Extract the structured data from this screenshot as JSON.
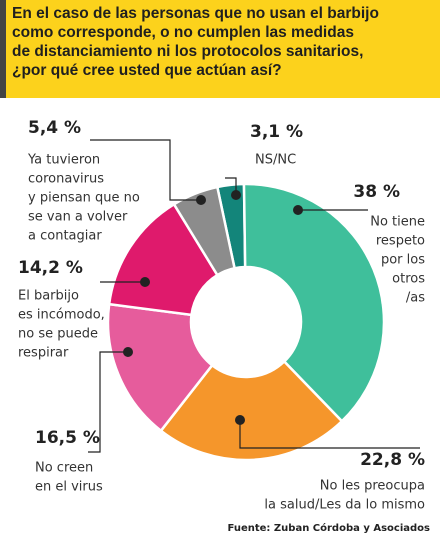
{
  "chart_data": {
    "type": "donut",
    "title_lines": [
      "En el caso de las personas que no usan el barbijo",
      "como corresponde, o no cumplen las medidas",
      "de distanciamiento ni los protocolos sanitarios,"
    ],
    "title_question": "¿por qué cree usted que actúan así?",
    "categories": [
      [
        "NS/NC"
      ],
      [
        "No tiene",
        "respeto",
        "por los",
        "otros",
        "/as"
      ],
      [
        "No les preocupa",
        "la salud/Les da lo mismo"
      ],
      [
        "No creen",
        "en el virus"
      ],
      [
        "El barbijo",
        "es incómodo,",
        "no se puede",
        "respirar"
      ],
      [
        "Ya tuvieron",
        "coronavirus",
        "y piensan que no",
        "se van a volver",
        "a contagiar"
      ]
    ],
    "values": [
      3.1,
      38,
      22.8,
      16.5,
      14.2,
      5.4
    ],
    "value_labels": [
      "3,1 %",
      "38 %",
      "22,8 %",
      "16,5 %",
      "14,2 %",
      "5,4 %"
    ],
    "colors": [
      "#13857a",
      "#3fbf9b",
      "#f5962b",
      "#e65c9c",
      "#df1a6c",
      "#8c8c8c"
    ],
    "source": "Fuente: Zuban Córdoba y Asociados"
  }
}
